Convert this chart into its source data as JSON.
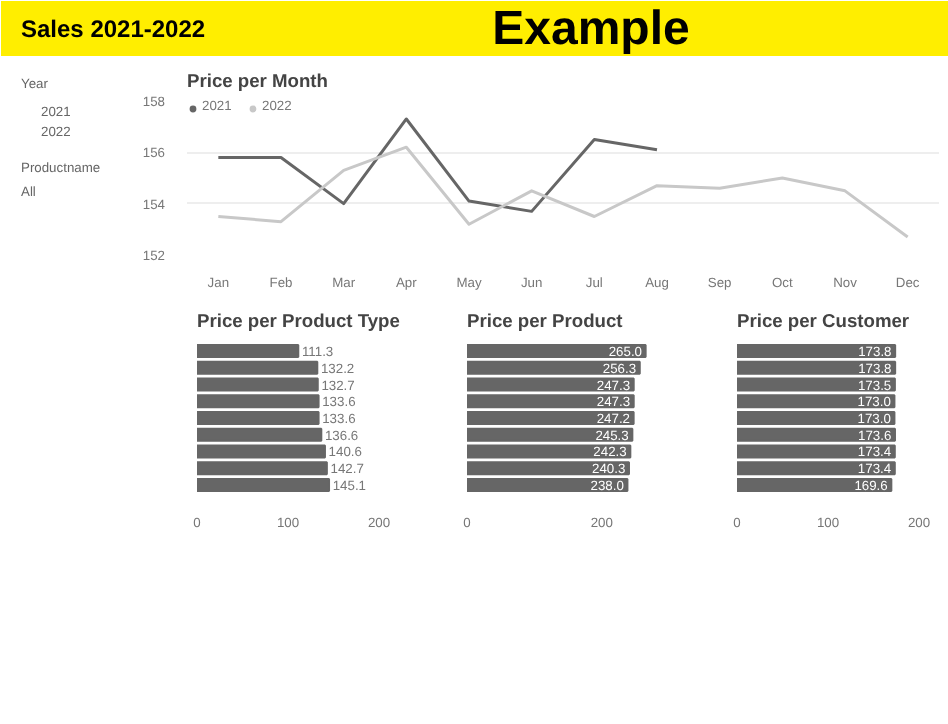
{
  "chart_data": [
    {
      "type": "line",
      "title": "Price per Month",
      "categories": [
        "Jan",
        "Feb",
        "Mar",
        "Apr",
        "May",
        "Jun",
        "Jul",
        "Aug",
        "Sep",
        "Oct",
        "Nov",
        "Dec"
      ],
      "series": [
        {
          "name": "2021",
          "color": "#666666",
          "values": [
            155.8,
            155.8,
            154.0,
            157.3,
            154.1,
            153.7,
            156.5,
            156.1,
            null,
            null,
            null,
            null
          ]
        },
        {
          "name": "2022",
          "color": "#c8c8c8",
          "values": [
            153.5,
            153.3,
            155.3,
            156.2,
            153.2,
            154.5,
            153.5,
            154.7,
            154.6,
            155.0,
            154.5,
            152.7
          ]
        }
      ],
      "ylim": [
        152,
        158
      ],
      "yticks": [
        152,
        154,
        156,
        158
      ],
      "grid": "y",
      "legend": "top left",
      "marker": "none",
      "line_style": "solid",
      "annotations": [
        "Sales 2021-2022",
        "Example",
        "Year",
        "2021",
        "2022",
        "Productname",
        "All"
      ]
    },
    {
      "type": "bar",
      "orientation": "horizontal",
      "title": "Price per Product Type",
      "categories": [
        null,
        null,
        null,
        null,
        null,
        null,
        null,
        null,
        null
      ],
      "values": [
        111.3,
        132.2,
        132.7,
        133.6,
        133.6,
        136.6,
        140.6,
        142.7,
        145.1
      ],
      "value_labels": [
        "111.3",
        "132.2",
        "132.7",
        "133.6",
        "133.6",
        "136.6",
        "140.6",
        "142.7",
        "145.1"
      ],
      "color": "#666666",
      "xlim": [
        0,
        200
      ],
      "xticks": [
        0,
        100,
        200
      ],
      "tick_labels": "x"
    },
    {
      "type": "bar",
      "orientation": "horizontal",
      "title": "Price per Product",
      "categories": [
        null,
        null,
        null,
        null,
        null,
        null,
        null,
        null,
        null
      ],
      "values": [
        265.0,
        256.3,
        247.3,
        247.3,
        247.2,
        245.3,
        242.3,
        240.3,
        238.0
      ],
      "value_labels": [
        "265.0",
        "256.3",
        "247.3",
        "247.3",
        "247.2",
        "245.3",
        "242.3",
        "240.3",
        "238.0"
      ],
      "color": "#666666",
      "xlim": [
        0,
        270
      ],
      "xticks": [
        0,
        200
      ],
      "tick_labels": "x"
    },
    {
      "type": "bar",
      "orientation": "horizontal",
      "title": "Price per Customer",
      "categories": [
        null,
        null,
        null,
        null,
        null,
        null,
        null,
        null,
        null
      ],
      "values": [
        173.8,
        173.8,
        173.5,
        173.0,
        173.0,
        173.6,
        173.4,
        173.4,
        169.6
      ],
      "value_labels": [
        "173.8",
        "173.8",
        "173.5",
        "173.0",
        "173.0",
        "173.6",
        "173.4",
        "173.4",
        "169.6"
      ],
      "color": "#666666",
      "xlim": [
        0,
        200
      ],
      "xticks": [
        0,
        100,
        200
      ],
      "tick_labels": "x"
    }
  ]
}
